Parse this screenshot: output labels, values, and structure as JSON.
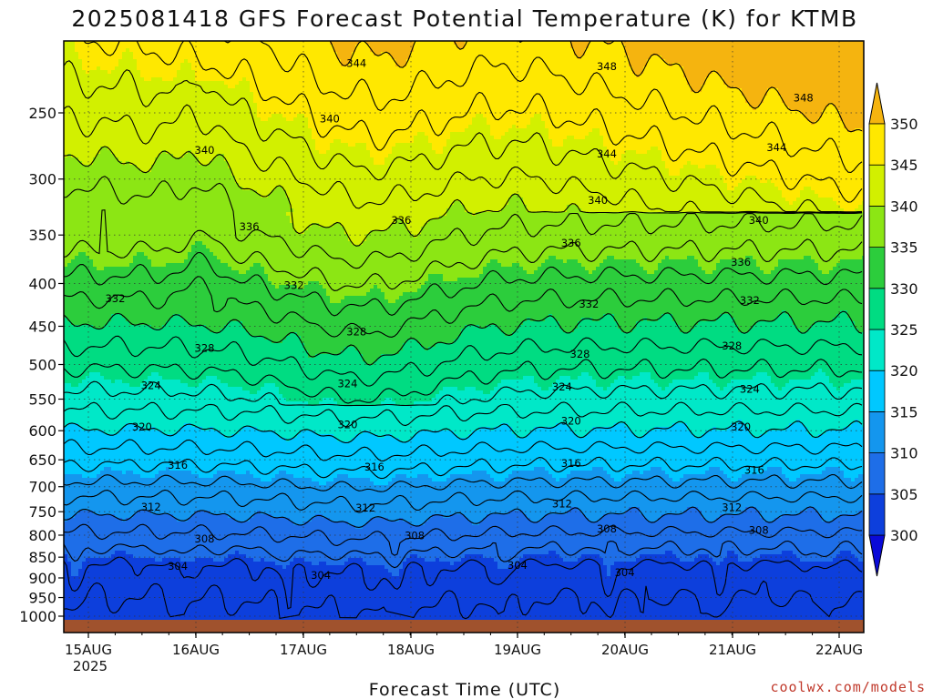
{
  "chart_data": {
    "type": "heatmap",
    "title": "2025081418 GFS Forecast Potential Temperature (K) for KTMB",
    "xlabel": "Forecast Time (UTC)",
    "ylabel": "",
    "x_ticks": [
      "15AUG",
      "16AUG",
      "17AUG",
      "18AUG",
      "19AUG",
      "20AUG",
      "21AUG",
      "22AUG"
    ],
    "x_year_label": "2025",
    "y_ticks": [
      250,
      300,
      350,
      400,
      450,
      500,
      550,
      600,
      650,
      700,
      750,
      800,
      850,
      900,
      950,
      1000
    ],
    "y_scale": "log-pressure (hPa), inverted",
    "ylim": [
      200,
      1010
    ],
    "colorbar": {
      "levels": [
        300,
        305,
        310,
        315,
        320,
        325,
        330,
        335,
        340,
        345,
        350
      ],
      "colors": [
        "#0a0ad8",
        "#0d3fdc",
        "#1e6ee8",
        "#1496ee",
        "#00c8ff",
        "#00e8c8",
        "#00dc82",
        "#2ccd3c",
        "#8ce614",
        "#d2f000",
        "#ffe800",
        "#f5b40f"
      ]
    },
    "contour_labels": [
      {
        "value": 344,
        "time": "17AUG 12Z",
        "pressure": 218
      },
      {
        "value": 348,
        "time": "19AUG 20Z",
        "pressure": 220
      },
      {
        "value": 348,
        "time": "21AUG 16Z",
        "pressure": 240
      },
      {
        "value": 340,
        "time": "17AUG 06Z",
        "pressure": 254
      },
      {
        "value": 340,
        "time": "16AUG 02Z",
        "pressure": 277
      },
      {
        "value": 344,
        "time": "19AUG 20Z",
        "pressure": 280
      },
      {
        "value": 344,
        "time": "21AUG 10Z",
        "pressure": 275
      },
      {
        "value": 340,
        "time": "19AUG 18Z",
        "pressure": 318
      },
      {
        "value": 340,
        "time": "21AUG 06Z",
        "pressure": 336
      },
      {
        "value": 336,
        "time": "16AUG 12Z",
        "pressure": 342
      },
      {
        "value": 336,
        "time": "17AUG 22Z",
        "pressure": 336
      },
      {
        "value": 336,
        "time": "19AUG 12Z",
        "pressure": 358
      },
      {
        "value": 336,
        "time": "21AUG 02Z",
        "pressure": 377
      },
      {
        "value": 332,
        "time": "15AUG 06Z",
        "pressure": 417
      },
      {
        "value": 332,
        "time": "16AUG 22Z",
        "pressure": 402
      },
      {
        "value": 332,
        "time": "19AUG 16Z",
        "pressure": 423
      },
      {
        "value": 332,
        "time": "21AUG 04Z",
        "pressure": 419
      },
      {
        "value": 328,
        "time": "16AUG 02Z",
        "pressure": 478
      },
      {
        "value": 328,
        "time": "17AUG 12Z",
        "pressure": 457
      },
      {
        "value": 328,
        "time": "19AUG 14Z",
        "pressure": 486
      },
      {
        "value": 328,
        "time": "21AUG 00Z",
        "pressure": 475
      },
      {
        "value": 324,
        "time": "15AUG 14Z",
        "pressure": 530
      },
      {
        "value": 324,
        "time": "17AUG 10Z",
        "pressure": 527
      },
      {
        "value": 324,
        "time": "19AUG 10Z",
        "pressure": 532
      },
      {
        "value": 324,
        "time": "21AUG 04Z",
        "pressure": 535
      },
      {
        "value": 320,
        "time": "15AUG 12Z",
        "pressure": 594
      },
      {
        "value": 320,
        "time": "17AUG 10Z",
        "pressure": 590
      },
      {
        "value": 320,
        "time": "19AUG 12Z",
        "pressure": 584
      },
      {
        "value": 320,
        "time": "21AUG 02Z",
        "pressure": 594
      },
      {
        "value": 316,
        "time": "15AUG 20Z",
        "pressure": 660
      },
      {
        "value": 316,
        "time": "17AUG 16Z",
        "pressure": 663
      },
      {
        "value": 316,
        "time": "19AUG 12Z",
        "pressure": 656
      },
      {
        "value": 316,
        "time": "21AUG 05Z",
        "pressure": 669
      },
      {
        "value": 312,
        "time": "15AUG 14Z",
        "pressure": 740
      },
      {
        "value": 312,
        "time": "17AUG 14Z",
        "pressure": 742
      },
      {
        "value": 312,
        "time": "19AUG 10Z",
        "pressure": 734
      },
      {
        "value": 312,
        "time": "21AUG 00Z",
        "pressure": 741
      },
      {
        "value": 308,
        "time": "16AUG 02Z",
        "pressure": 808
      },
      {
        "value": 308,
        "time": "18AUG 01Z",
        "pressure": 801
      },
      {
        "value": 308,
        "time": "19AUG 20Z",
        "pressure": 786
      },
      {
        "value": 308,
        "time": "21AUG 06Z",
        "pressure": 789
      },
      {
        "value": 304,
        "time": "15AUG 20Z",
        "pressure": 871
      },
      {
        "value": 304,
        "time": "17AUG 04Z",
        "pressure": 893
      },
      {
        "value": 304,
        "time": "19AUG 00Z",
        "pressure": 869
      },
      {
        "value": 304,
        "time": "20AUG 00Z",
        "pressure": 887
      }
    ]
  },
  "credit": "coolwx.com/models"
}
